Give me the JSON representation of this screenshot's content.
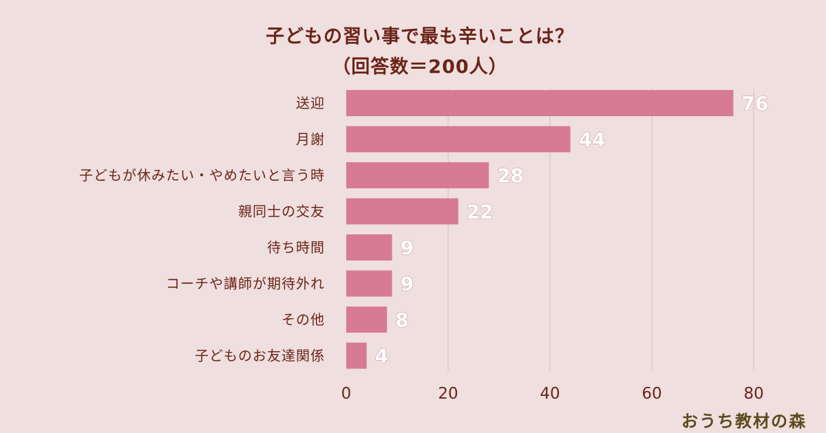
{
  "chart_data": {
    "type": "bar",
    "orientation": "horizontal",
    "title": "子どもの習い事で最も辛いことは？",
    "subtitle": "（回答数＝200人）",
    "categories": [
      "送迎",
      "月謝",
      "子どもが休みたい・やめたいと言う時",
      "親同士の交友",
      "待ち時間",
      "コーチや講師が期待外れ",
      "その他",
      "子どものお友達関係"
    ],
    "values": [
      76,
      44,
      28,
      22,
      9,
      9,
      8,
      4
    ],
    "xlim": [
      0,
      80
    ],
    "xticks": [
      0,
      20,
      40,
      60,
      80
    ],
    "grid": true,
    "bar_color": "#d67b93",
    "background_color": "#efdfdf",
    "text_color": "#6b2418"
  },
  "brand": {
    "text": "おうち教材の森"
  }
}
